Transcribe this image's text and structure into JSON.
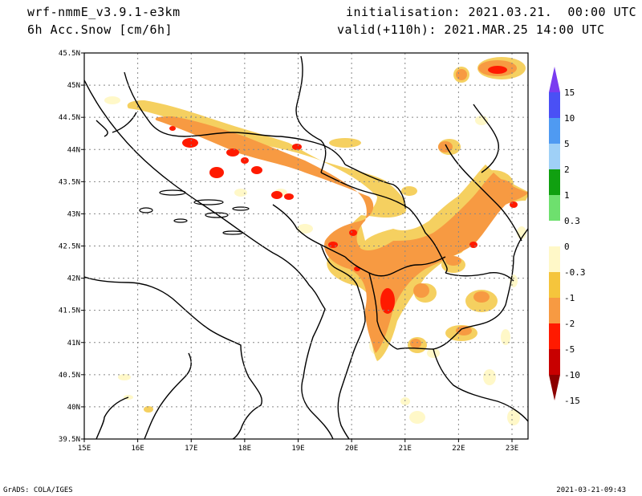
{
  "header": {
    "model": "wrf-nmmE_v3.9.1-e3km",
    "variable": "6h Acc.Snow [cm/6h]",
    "initialisation": "initialisation: 2021.03.21.  00:00 UTC",
    "valid": "valid(+110h): 2021.MAR.25 14:00 UTC"
  },
  "map": {
    "lon_ticks": [
      "15E",
      "16E",
      "17E",
      "18E",
      "19E",
      "20E",
      "21E",
      "22E",
      "23E"
    ],
    "lat_ticks": [
      "45.5N",
      "45N",
      "44.5N",
      "44N",
      "43.5N",
      "43N",
      "42.5N",
      "42N",
      "41.5N",
      "41N",
      "40.5N",
      "40N",
      "39.5N"
    ],
    "lon_range": [
      15,
      23.3
    ],
    "lat_range": [
      39.5,
      45.5
    ]
  },
  "colorbar": {
    "labels": [
      "15",
      "10",
      "5",
      "2",
      "1",
      "0.3",
      "0",
      "-0.3",
      "-1",
      "-2",
      "-5",
      "-10",
      "-15"
    ],
    "colors": [
      "#7a3cf0",
      "#4a50f5",
      "#4f9af2",
      "#9fd0f7",
      "#10a010",
      "#6ee06e",
      "#ffffff",
      "#fff8c8",
      "#f5c53c",
      "#f79a42",
      "#ff1a00",
      "#c80000",
      "#8c0000"
    ]
  },
  "footer": {
    "left": "GrADS: COLA/IGES",
    "right": "2021-03-21-09:43"
  }
}
